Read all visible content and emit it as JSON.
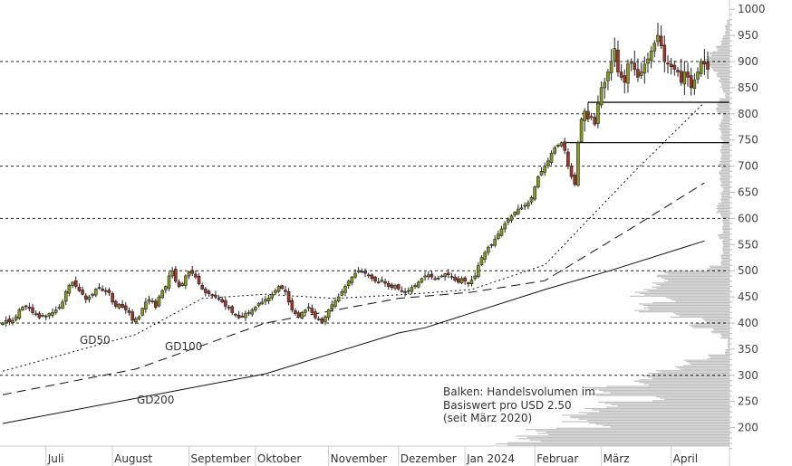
{
  "chart_data": {
    "type": "candlestick",
    "title": "",
    "ylim": [
      150,
      1000
    ],
    "yticks": [
      200,
      250,
      300,
      350,
      400,
      450,
      500,
      550,
      600,
      650,
      700,
      750,
      800,
      850,
      900,
      950,
      1000
    ],
    "dashed_gridlines": [
      300,
      400,
      500,
      600,
      700,
      800,
      900
    ],
    "month_ticks": [
      {
        "label": "Juli",
        "index": 13
      },
      {
        "label": "August",
        "index": 33
      },
      {
        "label": "September",
        "index": 56
      },
      {
        "label": "Oktober",
        "index": 76
      },
      {
        "label": "November",
        "index": 98
      },
      {
        "label": "Dezember",
        "index": 119
      },
      {
        "label": "Jan 2024",
        "index": 139
      },
      {
        "label": "Februar",
        "index": 160
      },
      {
        "label": "März",
        "index": 180
      },
      {
        "label": "April",
        "index": 201
      }
    ],
    "closes": [
      400,
      405,
      402,
      405,
      412,
      425,
      430,
      432,
      428,
      420,
      418,
      410,
      415,
      412,
      418,
      420,
      425,
      430,
      440,
      460,
      472,
      478,
      470,
      462,
      455,
      445,
      450,
      455,
      465,
      468,
      462,
      460,
      458,
      440,
      432,
      436,
      430,
      425,
      420,
      405,
      408,
      412,
      428,
      440,
      445,
      442,
      430,
      450,
      462,
      470,
      490,
      500,
      480,
      470,
      475,
      490,
      498,
      495,
      488,
      475,
      465,
      458,
      456,
      452,
      450,
      445,
      440,
      432,
      430,
      420,
      415,
      410,
      412,
      418,
      420,
      425,
      430,
      438,
      440,
      445,
      448,
      455,
      462,
      470,
      466,
      460,
      440,
      425,
      418,
      412,
      420,
      425,
      430,
      420,
      410,
      408,
      400,
      412,
      425,
      435,
      442,
      450,
      460,
      470,
      480,
      488,
      495,
      500,
      498,
      495,
      492,
      485,
      480,
      478,
      482,
      476,
      470,
      468,
      472,
      465,
      460,
      458,
      462,
      468,
      472,
      478,
      485,
      490,
      492,
      488,
      485,
      486,
      490,
      494,
      492,
      488,
      482,
      478,
      485,
      480,
      475,
      482,
      490,
      510,
      525,
      535,
      545,
      550,
      560,
      570,
      580,
      590,
      598,
      605,
      612,
      618,
      620,
      625,
      630,
      640,
      660,
      680,
      690,
      700,
      710,
      725,
      735,
      740,
      745,
      730,
      700,
      680,
      665,
      745,
      790,
      805,
      790,
      795,
      780,
      820,
      850,
      860,
      880,
      900,
      925,
      880,
      870,
      860,
      895,
      900,
      885,
      870,
      880,
      895,
      905,
      920,
      935,
      950,
      930,
      900,
      895,
      890,
      885,
      880,
      860,
      880,
      870,
      850,
      865,
      880,
      900,
      895,
      885
    ],
    "moving_averages": [
      {
        "name": "GD50",
        "label": "GD50",
        "points": [
          [
            0,
            308
          ],
          [
            40,
            378
          ],
          [
            60,
            447
          ],
          [
            79,
            455
          ],
          [
            100,
            447
          ],
          [
            122,
            455
          ],
          [
            141,
            464
          ],
          [
            163,
            511
          ],
          [
            190,
            690
          ],
          [
            211,
            822
          ]
        ]
      },
      {
        "name": "GD100",
        "label": "GD100",
        "points": [
          [
            0,
            263
          ],
          [
            40,
            312
          ],
          [
            79,
            400
          ],
          [
            119,
            447
          ],
          [
            141,
            459
          ],
          [
            163,
            481
          ],
          [
            190,
            585
          ],
          [
            211,
            668
          ]
        ]
      },
      {
        "name": "GD200",
        "label": "GD200",
        "points": [
          [
            0,
            208
          ],
          [
            40,
            256
          ],
          [
            79,
            303
          ],
          [
            119,
            381
          ],
          [
            127,
            391
          ],
          [
            163,
            464
          ],
          [
            182,
            499
          ],
          [
            211,
            557
          ]
        ]
      }
    ],
    "resistance_levels": [
      {
        "value": 745,
        "start_index": 169
      },
      {
        "value": 822,
        "start_index": 176
      }
    ],
    "volume_profile": {
      "bin_size": 10,
      "start": 160,
      "values": [
        258,
        245,
        235,
        225,
        155,
        185,
        185,
        160,
        145,
        85,
        155,
        160,
        105,
        100,
        90,
        60,
        50,
        25,
        5,
        2,
        2,
        10,
        20,
        45,
        30,
        65,
        105,
        100,
        70,
        110,
        95,
        85,
        80,
        80,
        25,
        10,
        10,
        8,
        8,
        8,
        13,
        8,
        8,
        8,
        10,
        15,
        14,
        10,
        10,
        8,
        10,
        11,
        12,
        10,
        12,
        10,
        10,
        10,
        8,
        10,
        10,
        12,
        10,
        8,
        15,
        15,
        12,
        5,
        8,
        10,
        12,
        15,
        20,
        28,
        28,
        22,
        15,
        10,
        8,
        5,
        5,
        3
      ]
    },
    "colors": {
      "up": "#8c9a1c",
      "down": "#a8322a",
      "profile": "#bdbdbd"
    },
    "note": [
      "Balken: Handelsvolumen im",
      "Basiswert pro USD 2.50",
      "(seit März 2020)"
    ]
  }
}
